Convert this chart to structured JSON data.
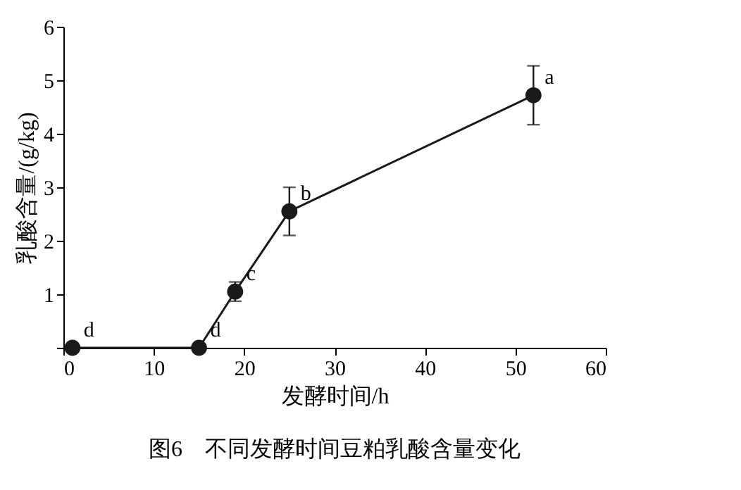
{
  "chart_data": {
    "type": "line",
    "title": "图6　不同发酵时间豆粕乳酸含量变化",
    "xlabel": "发酵时间/h",
    "ylabel": "乳酸含量/(g/kg)",
    "x": [
      1,
      15,
      19,
      25,
      52
    ],
    "series": [
      {
        "color": "#1a1a1a",
        "values": [
          0,
          0,
          1.05,
          2.55,
          4.72
        ],
        "errors": [
          null,
          null,
          0.18,
          0.45,
          0.55
        ]
      }
    ],
    "xlim": [
      0,
      60
    ],
    "xticks": [
      0,
      10,
      20,
      30,
      40,
      50,
      60
    ],
    "ylim": [
      0,
      6
    ],
    "yticks": [
      {
        "value": 0,
        "label": null
      },
      1,
      2,
      3,
      4,
      5,
      6
    ],
    "marker": "circle",
    "line_style": "solid",
    "annotations": [
      {
        "text": "d",
        "x": 1,
        "y": 0
      },
      {
        "text": "d",
        "x": 15,
        "y": 0
      },
      {
        "text": "c",
        "x": 19,
        "y": 1.05
      },
      {
        "text": "b",
        "x": 25,
        "y": 2.55
      },
      {
        "text": "a",
        "x": 52,
        "y": 4.72
      }
    ]
  }
}
